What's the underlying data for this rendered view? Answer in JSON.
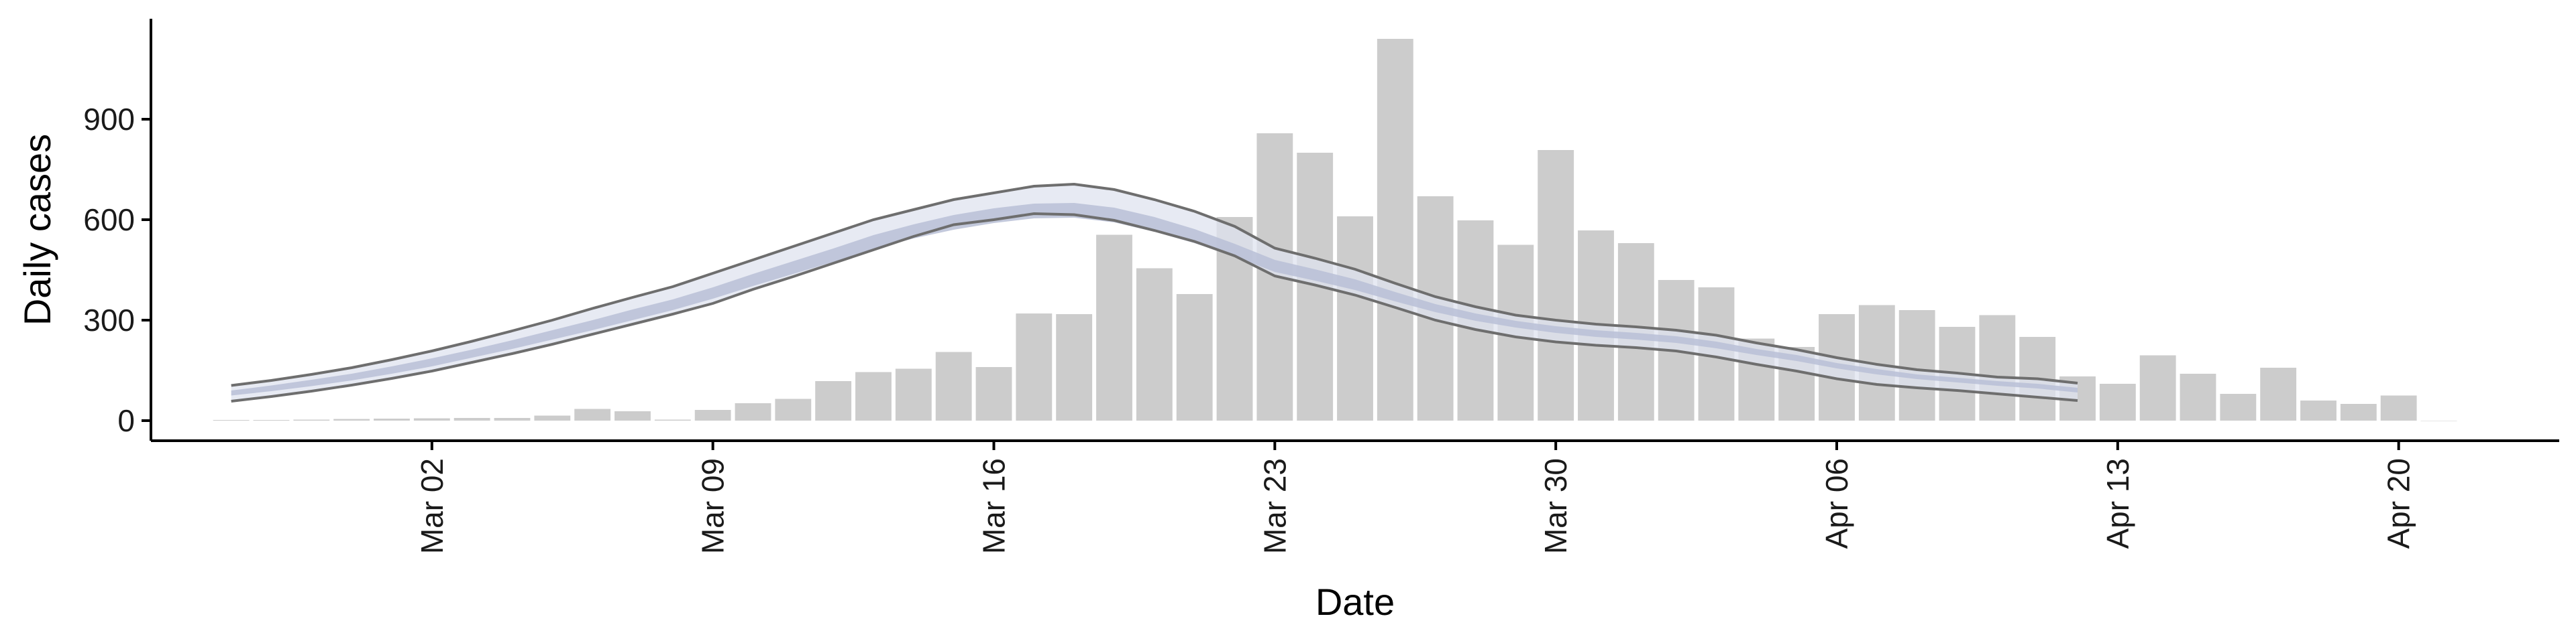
{
  "chart_data": {
    "type": "bar",
    "title": "",
    "xlabel": "Date",
    "ylabel": "Daily cases",
    "ylim": [
      -60,
      1200
    ],
    "xlim": [
      "2020-02-24",
      "2020-04-24"
    ],
    "grid": false,
    "y_ticks": [
      0,
      300,
      600,
      900
    ],
    "y_tick_labels": [
      "0",
      "300",
      "600",
      "900"
    ],
    "x_ticks": [
      "2020-03-02",
      "2020-03-09",
      "2020-03-16",
      "2020-03-23",
      "2020-03-30",
      "2020-04-06",
      "2020-04-13",
      "2020-04-20"
    ],
    "x_tick_labels": [
      "Mar 02",
      "Mar 09",
      "Mar 16",
      "Mar 23",
      "Mar 30",
      "Apr 06",
      "Apr 13",
      "Apr 20"
    ],
    "colors": {
      "bars": "#cccccc",
      "band_outer": "#dfe3ef",
      "band_inner": "#b9c0d6",
      "bound_lines": "#6e6e6e",
      "axis": "#000000"
    },
    "bars": {
      "dates": [
        "2020-02-26",
        "2020-02-27",
        "2020-02-28",
        "2020-02-29",
        "2020-03-01",
        "2020-03-02",
        "2020-03-03",
        "2020-03-04",
        "2020-03-05",
        "2020-03-06",
        "2020-03-07",
        "2020-03-08",
        "2020-03-09",
        "2020-03-10",
        "2020-03-11",
        "2020-03-12",
        "2020-03-13",
        "2020-03-14",
        "2020-03-15",
        "2020-03-16",
        "2020-03-17",
        "2020-03-18",
        "2020-03-19",
        "2020-03-20",
        "2020-03-21",
        "2020-03-22",
        "2020-03-23",
        "2020-03-24",
        "2020-03-25",
        "2020-03-26",
        "2020-03-27",
        "2020-03-28",
        "2020-03-29",
        "2020-03-30",
        "2020-03-31",
        "2020-04-01",
        "2020-04-02",
        "2020-04-03",
        "2020-04-04",
        "2020-04-05",
        "2020-04-06",
        "2020-04-07",
        "2020-04-08",
        "2020-04-09",
        "2020-04-10",
        "2020-04-11",
        "2020-04-12",
        "2020-04-13",
        "2020-04-14",
        "2020-04-15",
        "2020-04-16",
        "2020-04-17",
        "2020-04-18",
        "2020-04-19",
        "2020-04-20",
        "2020-04-21"
      ],
      "values": [
        2,
        2,
        3,
        5,
        6,
        7,
        8,
        8,
        15,
        35,
        28,
        3,
        32,
        52,
        65,
        118,
        145,
        155,
        205,
        160,
        320,
        318,
        555,
        455,
        378,
        608,
        858,
        800,
        610,
        1140,
        670,
        598,
        525,
        808,
        568,
        530,
        420,
        398,
        245,
        220,
        318,
        345,
        330,
        280,
        315,
        250,
        132,
        110,
        195,
        140,
        80,
        158,
        60,
        50,
        75,
        0
      ]
    },
    "estimate": {
      "dates": [
        "2020-02-26",
        "2020-02-27",
        "2020-02-28",
        "2020-02-29",
        "2020-03-01",
        "2020-03-02",
        "2020-03-03",
        "2020-03-04",
        "2020-03-05",
        "2020-03-06",
        "2020-03-07",
        "2020-03-08",
        "2020-03-09",
        "2020-03-10",
        "2020-03-11",
        "2020-03-12",
        "2020-03-13",
        "2020-03-14",
        "2020-03-15",
        "2020-03-16",
        "2020-03-17",
        "2020-03-18",
        "2020-03-19",
        "2020-03-20",
        "2020-03-21",
        "2020-03-22",
        "2020-03-23",
        "2020-03-24",
        "2020-03-25",
        "2020-03-26",
        "2020-03-27",
        "2020-03-28",
        "2020-03-29",
        "2020-03-30",
        "2020-03-31",
        "2020-04-01",
        "2020-04-02",
        "2020-04-03",
        "2020-04-04",
        "2020-04-05",
        "2020-04-06",
        "2020-04-07",
        "2020-04-08",
        "2020-04-09",
        "2020-04-10",
        "2020-04-11",
        "2020-04-12"
      ],
      "upper": [
        105,
        120,
        138,
        158,
        182,
        208,
        237,
        268,
        300,
        335,
        368,
        400,
        440,
        480,
        520,
        560,
        600,
        630,
        660,
        680,
        700,
        706,
        690,
        660,
        625,
        580,
        515,
        485,
        452,
        410,
        370,
        340,
        315,
        300,
        288,
        280,
        270,
        255,
        232,
        212,
        188,
        168,
        152,
        142,
        130,
        125,
        112
      ],
      "inner_upper": [
        90,
        105,
        122,
        140,
        162,
        186,
        212,
        240,
        270,
        300,
        332,
        362,
        398,
        438,
        476,
        514,
        554,
        586,
        614,
        634,
        648,
        650,
        636,
        608,
        572,
        528,
        480,
        452,
        422,
        384,
        348,
        320,
        298,
        282,
        270,
        262,
        252,
        236,
        214,
        196,
        172,
        154,
        138,
        128,
        118,
        110,
        98
      ],
      "inner_lower": [
        75,
        88,
        103,
        120,
        140,
        162,
        188,
        214,
        242,
        270,
        300,
        330,
        364,
        402,
        438,
        474,
        512,
        544,
        570,
        590,
        604,
        606,
        592,
        564,
        530,
        490,
        444,
        418,
        390,
        356,
        324,
        298,
        278,
        262,
        250,
        242,
        232,
        216,
        196,
        178,
        156,
        138,
        124,
        114,
        104,
        96,
        84
      ],
      "lower": [
        58,
        72,
        88,
        106,
        126,
        148,
        174,
        200,
        228,
        258,
        288,
        318,
        350,
        392,
        430,
        470,
        510,
        550,
        585,
        600,
        618,
        615,
        598,
        568,
        535,
        492,
        432,
        405,
        375,
        338,
        300,
        272,
        250,
        235,
        225,
        218,
        208,
        190,
        168,
        148,
        125,
        108,
        98,
        90,
        80,
        70,
        60
      ]
    }
  }
}
